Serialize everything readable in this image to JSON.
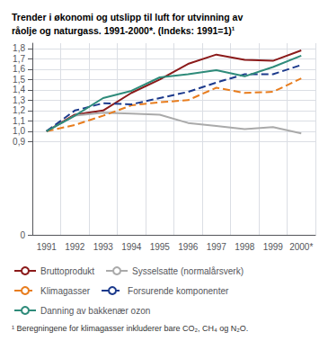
{
  "chart_data": {
    "type": "line",
    "title": "Trender i økonomi og utslipp til luft for utvinning av\nråolje og naturgass. 1991-2000*. (Indeks: 1991=1)¹",
    "footnote": "¹ Beregningene for klimagasser inkluderer bare CO₂, CH₄ og N₂O.",
    "categories": [
      "1991",
      "1992",
      "1993",
      "1994",
      "1995",
      "1996",
      "1997",
      "1998",
      "1999",
      "2000*"
    ],
    "series": [
      {
        "name": "Bruttoprodukt",
        "color": "#8B1A1A",
        "line_style": "solid",
        "values": [
          1.0,
          1.16,
          1.2,
          1.37,
          1.5,
          1.65,
          1.74,
          1.69,
          1.68,
          1.78
        ]
      },
      {
        "name": "Sysselsatte (normalårsverk)",
        "color": "#aaaaaa",
        "line_style": "solid",
        "values": [
          1.0,
          1.15,
          1.18,
          1.17,
          1.16,
          1.08,
          1.05,
          1.02,
          1.04,
          0.98
        ]
      },
      {
        "name": "Klimagasser",
        "color": "#E87D1E",
        "line_style": "dashed",
        "values": [
          1.0,
          1.06,
          1.15,
          1.25,
          1.28,
          1.3,
          1.42,
          1.37,
          1.38,
          1.51
        ]
      },
      {
        "name": "Forsurende komponenter",
        "color": "#1C3A8C",
        "line_style": "dashed",
        "values": [
          1.0,
          1.2,
          1.27,
          1.26,
          1.32,
          1.38,
          1.47,
          1.55,
          1.55,
          1.64
        ]
      },
      {
        "name": "Danning av bakkenær ozon",
        "color": "#2E8B7A",
        "line_style": "solid",
        "values": [
          1.0,
          1.15,
          1.32,
          1.39,
          1.52,
          1.55,
          1.59,
          1.53,
          1.62,
          1.73
        ]
      }
    ],
    "ylim": [
      0,
      1.85
    ],
    "yticks": [
      0,
      {
        "value": 0.9,
        "label": "0,9"
      },
      {
        "value": 1.0,
        "label": "1,0"
      },
      {
        "value": 1.1,
        "label": "1,1"
      },
      {
        "value": 1.2,
        "label": "1,2"
      },
      {
        "value": 1.3,
        "label": "1,3"
      },
      {
        "value": 1.4,
        "label": "1,4"
      },
      {
        "value": 1.5,
        "label": "1,5"
      },
      {
        "value": 1.6,
        "label": "1,6"
      },
      {
        "value": 1.7,
        "label": "1,7"
      },
      {
        "value": 1.8,
        "label": "1,8"
      }
    ],
    "grid": true,
    "legend": "bottom"
  }
}
